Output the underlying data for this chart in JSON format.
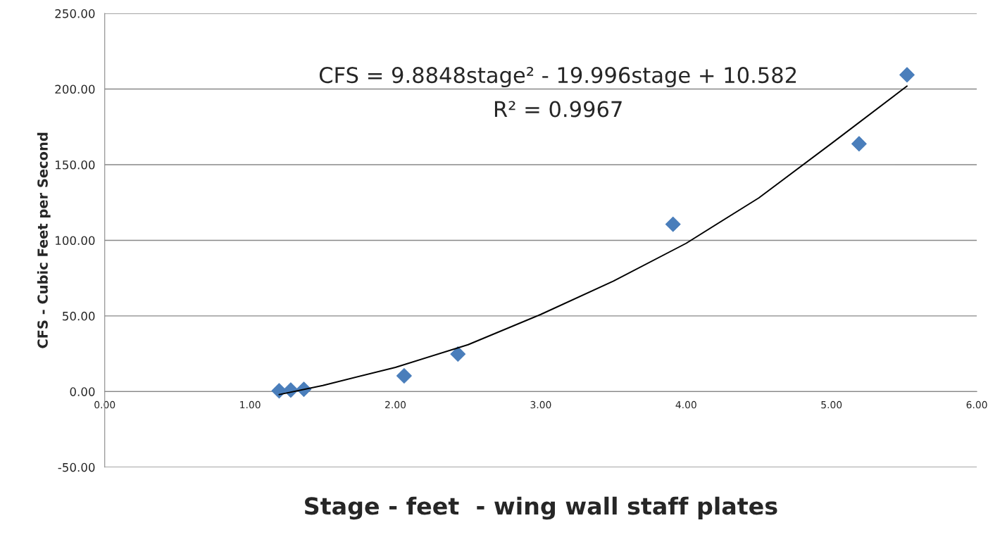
{
  "chart_data": {
    "type": "scatter",
    "xlabel": "Stage - feet  - wing wall staff plates",
    "ylabel": "CFS - Cubic Feet per Second",
    "series": [
      {
        "color": "#4a7ebb",
        "marker": "diamond",
        "x": [
          1.2,
          1.28,
          1.37,
          2.06,
          2.43,
          3.91,
          5.19,
          5.52
        ],
        "values": [
          0.5,
          1,
          1.5,
          10.4,
          24.8,
          110.6,
          163.8,
          209.4
        ]
      },
      {
        "type": "line",
        "color": "#000000",
        "line_style": "solid",
        "x": [
          1.2,
          1.5,
          2.0,
          2.5,
          3.0,
          3.5,
          4.0,
          4.5,
          5.0,
          5.52
        ],
        "values": [
          -2,
          4,
          16,
          31,
          51,
          73,
          98,
          128,
          164,
          202
        ]
      }
    ],
    "annotations": [
      "CFS = 9.8848stage² - 19.996stage + 10.582",
      "R² = 0.9967"
    ],
    "xlim": [
      0,
      6
    ],
    "xticks": [
      {
        "value": 0,
        "label": "0.00"
      },
      {
        "value": 1,
        "label": "1.00"
      },
      {
        "value": 2,
        "label": "2.00"
      },
      {
        "value": 3,
        "label": "3.00"
      },
      {
        "value": 4,
        "label": "4.00"
      },
      {
        "value": 5,
        "label": "5.00"
      },
      {
        "value": 6,
        "label": "6.00"
      }
    ],
    "ylim": [
      -50,
      250
    ],
    "yticks": [
      {
        "value": -50,
        "label": "-50.00"
      },
      {
        "value": 0,
        "label": "0.00"
      },
      {
        "value": 50,
        "label": "50.00"
      },
      {
        "value": 100,
        "label": "100.00"
      },
      {
        "value": 150,
        "label": "150.00"
      },
      {
        "value": 200,
        "label": "200.00"
      },
      {
        "value": 250,
        "label": "250.00"
      }
    ],
    "grid": "y",
    "legend": false
  }
}
